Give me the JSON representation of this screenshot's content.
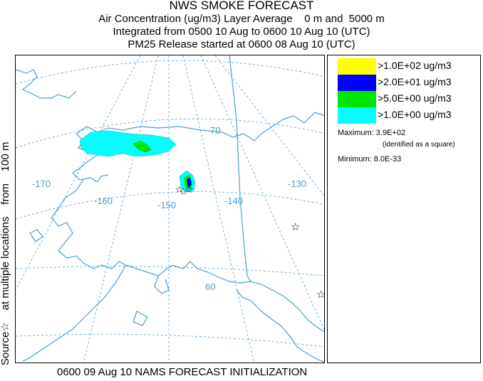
{
  "title": {
    "line1": "NWS SMOKE FORECAST",
    "line2": "Air Concentration (ug/m3) Layer Average    0 m and  5000 m",
    "line3": "Integrated from 0500 10 Aug to 0600 10 Aug 10 (UTC)",
    "line4": "PM25 Release started at 0600 08 Aug 10 (UTC)"
  },
  "side_label": "Source☆    at multiple locations    from    100 m",
  "map": {
    "longitude_labels": [
      "-170",
      "-160",
      "-150",
      "-140",
      "-130"
    ],
    "latitude_labels": [
      "70",
      "60"
    ],
    "source_marker": "star",
    "colors": {
      "coast": "#4a9fd0",
      "graticule": "#4a9fd0",
      "yellow": "#ffff00",
      "blue": "#0000ff",
      "green": "#00e600",
      "cyan": "#00ffff"
    }
  },
  "legend": {
    "items": [
      {
        "label": ">1.0E+02 ug/m3",
        "color": "#ffff00"
      },
      {
        "label": ">2.0E+01 ug/m3",
        "color": "#0000ff"
      },
      {
        "label": ">5.0E+00 ug/m3",
        "color": "#00e600"
      },
      {
        "label": ">1.0E+00 ug/m3",
        "color": "#00ffff"
      }
    ],
    "maximum": "Maximum: 3.9E+02",
    "maximum_note": "(identified as a square)",
    "minimum": "Minimum: 8.0E-33"
  },
  "footer": "0600 09 Aug 10 NAMS FORECAST INITIALIZATION"
}
